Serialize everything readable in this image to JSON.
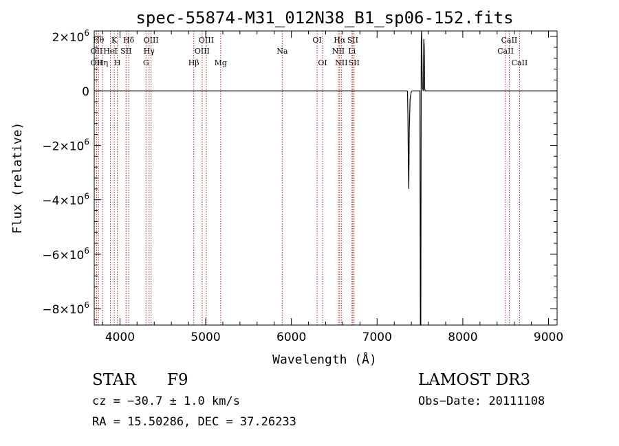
{
  "chart_data": {
    "type": "line",
    "title": "spec-55874-M31_012N38_B1_sp06-152.fits",
    "xlabel": "Wavelength (Å)",
    "ylabel": "Flux (relative)",
    "xlim": [
      3700,
      9100
    ],
    "ylim": [
      -8600000.0,
      2200000.0
    ],
    "xticks": [
      4000,
      5000,
      6000,
      7000,
      8000,
      9000
    ],
    "xtick_labels": [
      "4000",
      "5000",
      "6000",
      "7000",
      "8000",
      "9000"
    ],
    "yticks": [
      2000000,
      0,
      -2000000,
      -4000000,
      -6000000,
      -8000000
    ],
    "ytick_mantissa": [
      "2",
      "0",
      "−2",
      "−4",
      "−6",
      "−8"
    ],
    "ytick_exponent": "6",
    "grid": false,
    "series": [
      {
        "x": [
          3700,
          7330,
          7355,
          7360,
          7365,
          7370,
          7375,
          7385,
          7400,
          7420,
          7450,
          7480,
          7500,
          7505,
          7510,
          7515,
          7520,
          7525,
          7530,
          7540,
          7545,
          7550,
          7555,
          7560,
          7570,
          7600,
          9100
        ],
        "y": [
          0,
          0,
          -5000,
          -1000000,
          -2800000,
          -3600000,
          -1500000,
          -300000,
          -10000,
          0,
          0,
          0,
          0,
          -8600000,
          -8600000,
          1800000,
          2200000,
          800000,
          100000,
          0,
          1900000,
          1600000,
          100000,
          0,
          0,
          0,
          0
        ]
      }
    ],
    "line_markers": [
      {
        "x": 3750,
        "label": "Hθ",
        "row": 1
      },
      {
        "x": 3727,
        "label": "OII",
        "row": 2
      },
      {
        "x": 3727,
        "label": "OII",
        "row": 3
      },
      {
        "x": 3797,
        "label": "Hη",
        "row": 3
      },
      {
        "x": 3889,
        "label": "HeI",
        "row": 2
      },
      {
        "x": 3934,
        "label": "K",
        "row": 1
      },
      {
        "x": 3970,
        "label": "H",
        "row": 3
      },
      {
        "x": 4072,
        "label": "SII",
        "row": 2
      },
      {
        "x": 4102,
        "label": "Hδ",
        "row": 1
      },
      {
        "x": 4304,
        "label": "G",
        "row": 3
      },
      {
        "x": 4340,
        "label": "Hγ",
        "row": 2
      },
      {
        "x": 4363,
        "label": "OIII",
        "row": 1
      },
      {
        "x": 4861,
        "label": "Hβ",
        "row": 3
      },
      {
        "x": 4959,
        "label": "OIII",
        "row": 2
      },
      {
        "x": 5007,
        "label": "OIII",
        "row": 1
      },
      {
        "x": 5175,
        "label": "Mg",
        "row": 3
      },
      {
        "x": 5893,
        "label": "Na",
        "row": 2
      },
      {
        "x": 6300,
        "label": "OI",
        "row": 1
      },
      {
        "x": 6364,
        "label": "OI",
        "row": 3
      },
      {
        "x": 6548,
        "label": "NII",
        "row": 2
      },
      {
        "x": 6563,
        "label": "Hα",
        "row": 1
      },
      {
        "x": 6583,
        "label": "NII",
        "row": 3
      },
      {
        "x": 6707,
        "label": "Li",
        "row": 2
      },
      {
        "x": 6716,
        "label": "SII",
        "row": 1
      },
      {
        "x": 6731,
        "label": "SII",
        "row": 3
      },
      {
        "x": 8498,
        "label": "CaII",
        "row": 2
      },
      {
        "x": 8542,
        "label": "CaII",
        "row": 1
      },
      {
        "x": 8662,
        "label": "CaII",
        "row": 3
      }
    ],
    "colors": {
      "spectrum": "#000000",
      "marker": "#b22222"
    }
  },
  "info": {
    "class": "STAR",
    "subclass": "F9",
    "survey": "LAMOST DR3",
    "cz": "cz = −30.7 ± 1.0 km/s",
    "obs_date": "Obs−Date: 20111108",
    "radec": "RA =  15.50286, DEC =  37.26233"
  }
}
